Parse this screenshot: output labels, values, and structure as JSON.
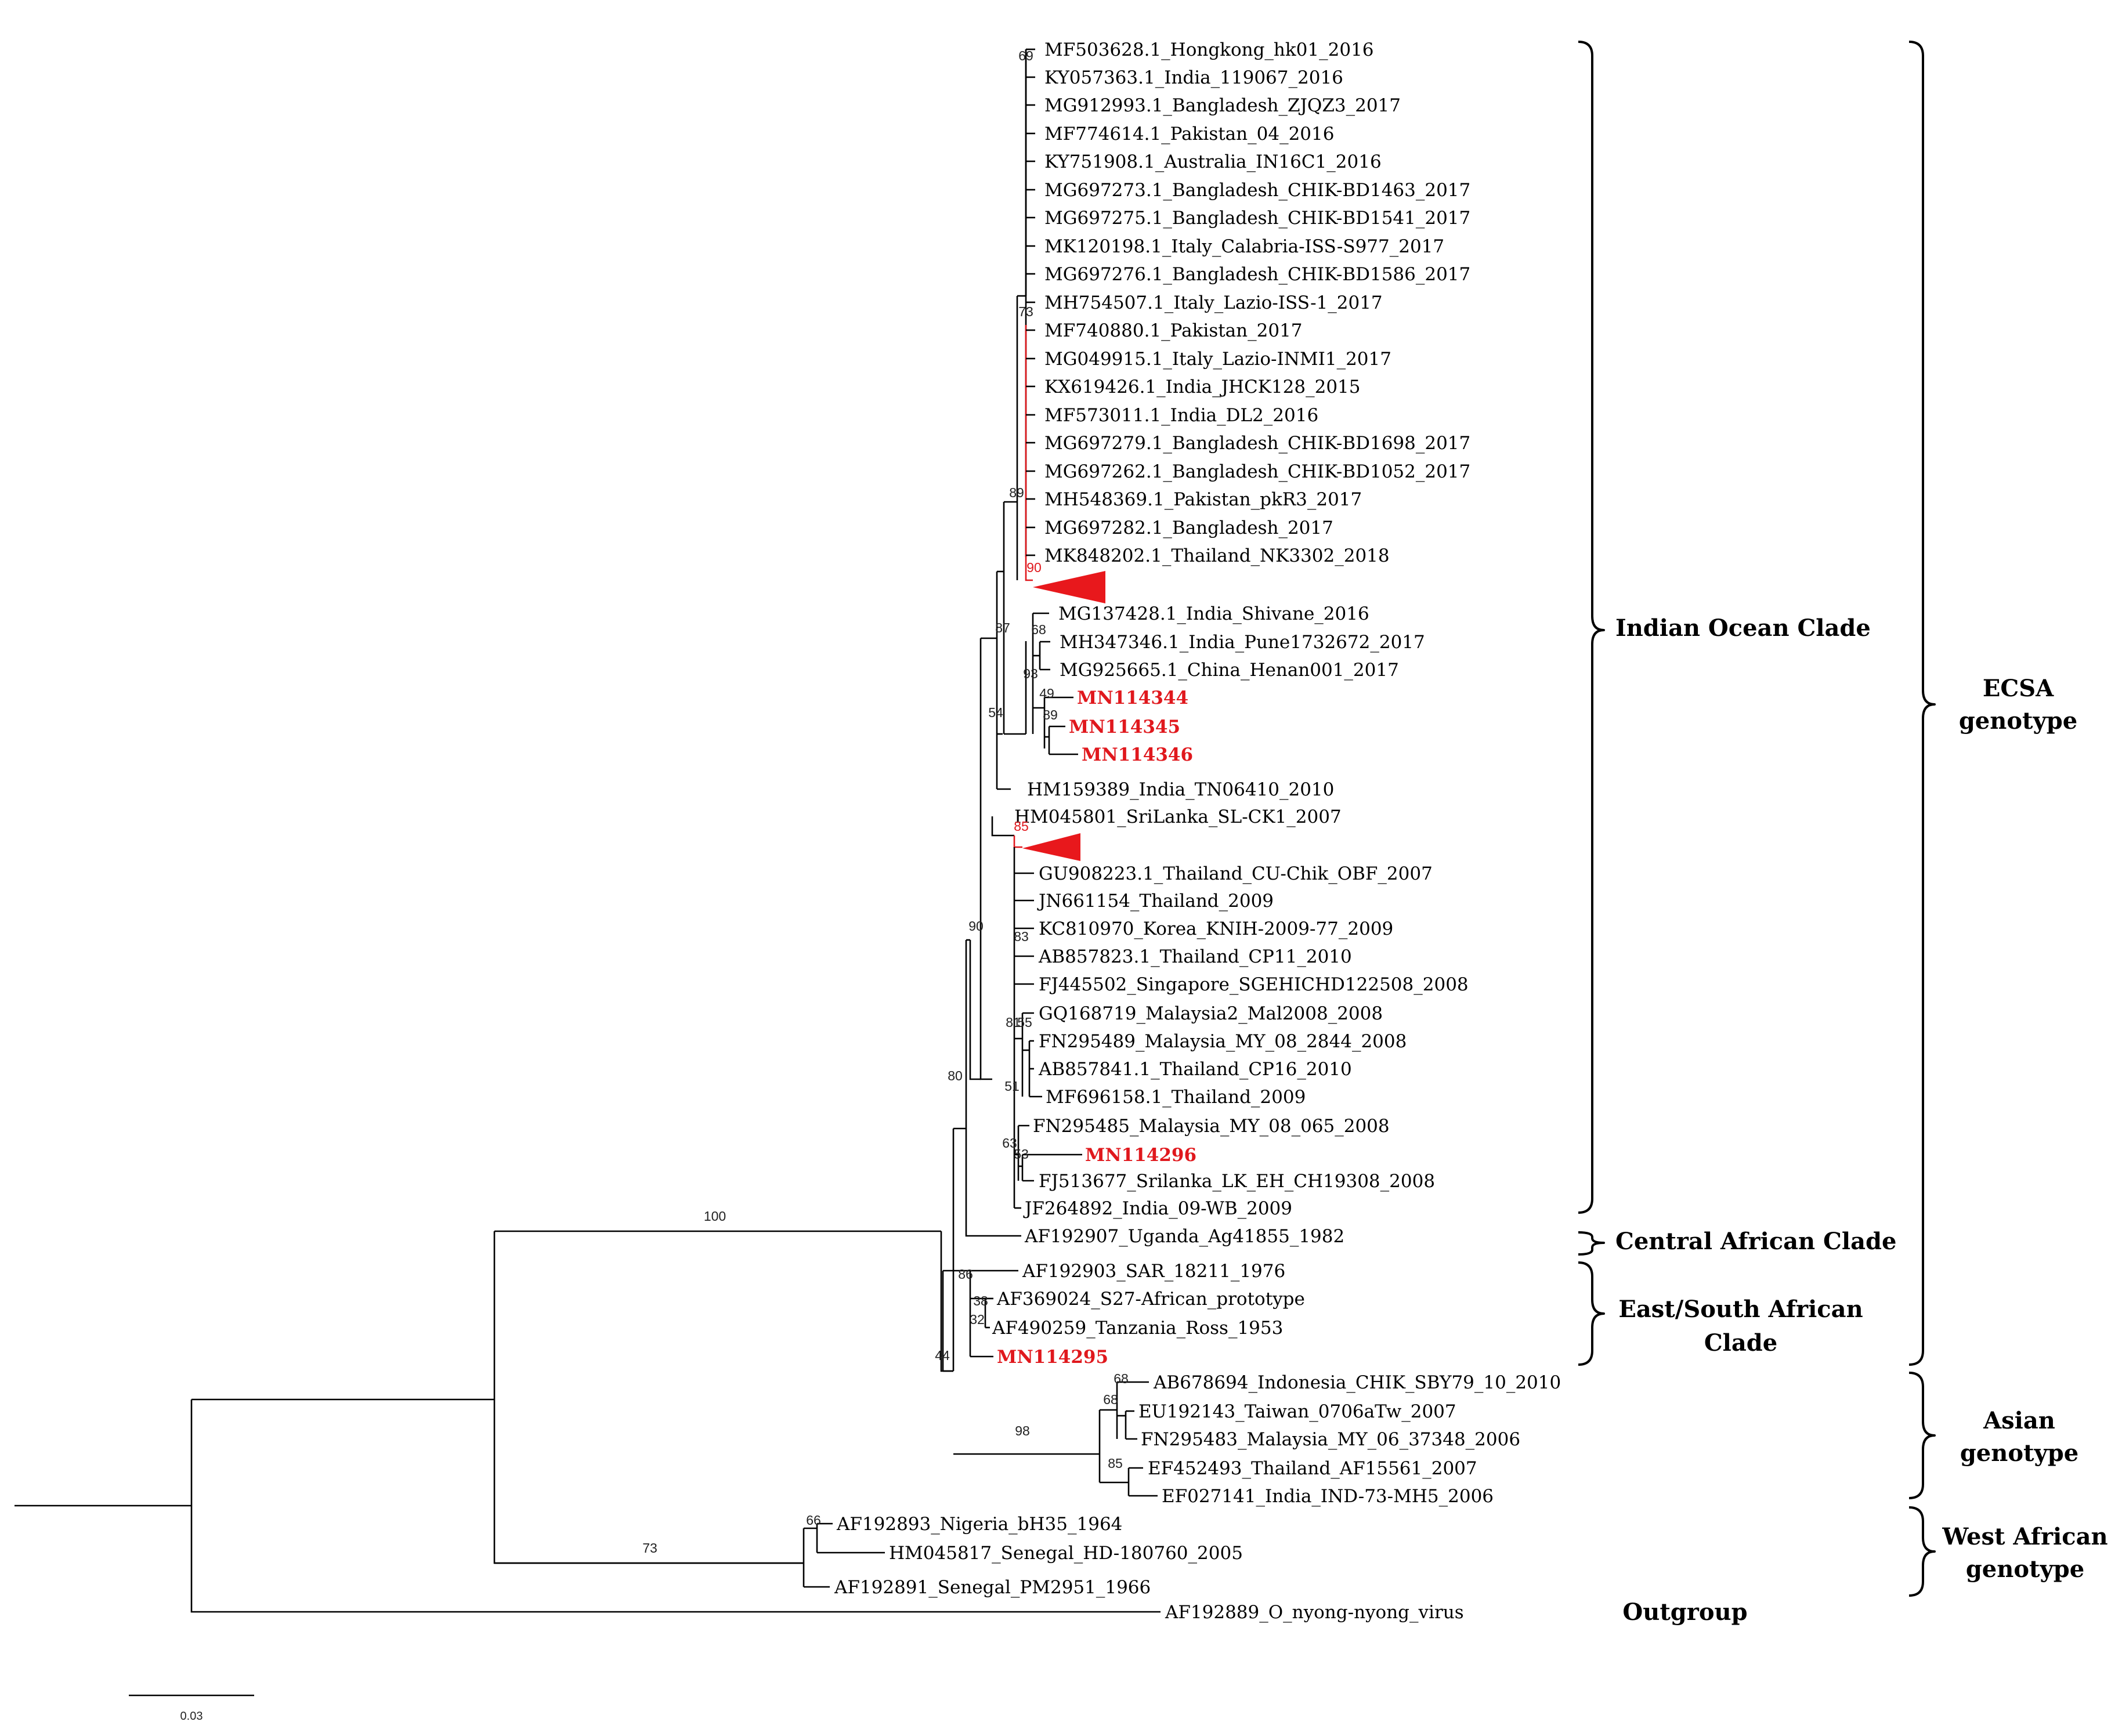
{
  "colors": {
    "highlight": "#e0181d",
    "line": "#000000"
  },
  "leaves": [
    {
      "id": "L1",
      "label": "MF503628.1_Hongkong_hk01_2016"
    },
    {
      "id": "L2",
      "label": "KY057363.1_India_119067_2016"
    },
    {
      "id": "L3",
      "label": "MG912993.1_Bangladesh_ZJQZ3_2017"
    },
    {
      "id": "L4",
      "label": "MF774614.1_Pakistan_04_2016"
    },
    {
      "id": "L5",
      "label": "KY751908.1_Australia_IN16C1_2016"
    },
    {
      "id": "L6",
      "label": "MG697273.1_Bangladesh_CHIK-BD1463_2017"
    },
    {
      "id": "L7",
      "label": "MG697275.1_Bangladesh_CHIK-BD1541_2017"
    },
    {
      "id": "L8",
      "label": "MK120198.1_Italy_Calabria-ISS-S977_2017"
    },
    {
      "id": "L9",
      "label": "MG697276.1_Bangladesh_CHIK-BD1586_2017"
    },
    {
      "id": "L10",
      "label": "MH754507.1_Italy_Lazio-ISS-1_2017"
    },
    {
      "id": "L11",
      "label": "MF740880.1_Pakistan_2017"
    },
    {
      "id": "L12",
      "label": "MG049915.1_Italy_Lazio-INMI1_2017"
    },
    {
      "id": "L13",
      "label": "KX619426.1_India_JHCK128_2015"
    },
    {
      "id": "L14",
      "label": "MF573011.1_India_DL2_2016"
    },
    {
      "id": "L15",
      "label": "MG697279.1_Bangladesh_CHIK-BD1698_2017"
    },
    {
      "id": "L16",
      "label": "MG697262.1_Bangladesh_CHIK-BD1052_2017"
    },
    {
      "id": "L17",
      "label": "MH548369.1_Pakistan_pkR3_2017"
    },
    {
      "id": "L18",
      "label": "MG697282.1_Bangladesh_2017"
    },
    {
      "id": "L19",
      "label": "MK848202.1_Thailand_NK3302_2018"
    },
    {
      "id": "L20",
      "label": "MG137428.1_India_Shivane_2016"
    },
    {
      "id": "L21",
      "label": "MH347346.1_India_Pune1732672_2017"
    },
    {
      "id": "L22",
      "label": "MG925665.1_China_Henan001_2017"
    },
    {
      "id": "L23",
      "label": "MN114344",
      "highlight": true
    },
    {
      "id": "L24",
      "label": "MN114345",
      "highlight": true
    },
    {
      "id": "L25",
      "label": "MN114346",
      "highlight": true
    },
    {
      "id": "L26",
      "label": "HM159389_India_TN06410_2010"
    },
    {
      "id": "L27",
      "label": "HM045801_SriLanka_SL-CK1_2007"
    },
    {
      "id": "L28",
      "label": "GU908223.1_Thailand_CU-Chik_OBF_2007"
    },
    {
      "id": "L29",
      "label": "JN661154_Thailand_2009"
    },
    {
      "id": "L30",
      "label": "KC810970_Korea_KNIH-2009-77_2009"
    },
    {
      "id": "L31",
      "label": "AB857823.1_Thailand_CP11_2010"
    },
    {
      "id": "L32",
      "label": "FJ445502_Singapore_SGEHICHD122508_2008"
    },
    {
      "id": "L33",
      "label": "GQ168719_Malaysia2_Mal2008_2008"
    },
    {
      "id": "L34",
      "label": "FN295489_Malaysia_MY_08_2844_2008"
    },
    {
      "id": "L35",
      "label": "AB857841.1_Thailand_CP16_2010"
    },
    {
      "id": "L36",
      "label": "MF696158.1_Thailand_2009"
    },
    {
      "id": "L37",
      "label": "FN295485_Malaysia_MY_08_065_2008"
    },
    {
      "id": "L38",
      "label": "MN114296",
      "highlight": true
    },
    {
      "id": "L39",
      "label": "FJ513677_Srilanka_LK_EH_CH19308_2008"
    },
    {
      "id": "L40",
      "label": "JF264892_India_09-WB_2009"
    },
    {
      "id": "L41",
      "label": "AF192907_Uganda_Ag41855_1982"
    },
    {
      "id": "L42",
      "label": "AF192903_SAR_18211_1976"
    },
    {
      "id": "L43",
      "label": "AF369024_S27-African_prototype"
    },
    {
      "id": "L44",
      "label": "AF490259_Tanzania_Ross_1953"
    },
    {
      "id": "L45",
      "label": "MN114295",
      "highlight": true
    },
    {
      "id": "L46",
      "label": "AB678694_Indonesia_CHIK_SBY79_10_2010"
    },
    {
      "id": "L47",
      "label": "EU192143_Taiwan_0706aTw_2007"
    },
    {
      "id": "L48",
      "label": "FN295483_Malaysia_MY_06_37348_2006"
    },
    {
      "id": "L49",
      "label": "EF452493_Thailand_AF15561_2007"
    },
    {
      "id": "L50",
      "label": "EF027141_India_IND-73-MH5_2006"
    },
    {
      "id": "L51",
      "label": "AF192893_Nigeria_bH35_1964"
    },
    {
      "id": "L52",
      "label": "HM045817_Senegal_HD-180760_2005"
    },
    {
      "id": "L53",
      "label": "AF192891_Senegal_PM2951_1966"
    },
    {
      "id": "L54",
      "label": "AF192889_O_nyong-nyong_virus"
    }
  ],
  "support_values": [
    {
      "id": "S1",
      "value": "69"
    },
    {
      "id": "S2",
      "value": "73"
    },
    {
      "id": "S3",
      "value": "89"
    },
    {
      "id": "S4",
      "value": "90",
      "highlight": true
    },
    {
      "id": "S5",
      "value": "87"
    },
    {
      "id": "S6",
      "value": "68"
    },
    {
      "id": "S7",
      "value": "93"
    },
    {
      "id": "S8",
      "value": "49"
    },
    {
      "id": "S9",
      "value": "89"
    },
    {
      "id": "S10",
      "value": "54"
    },
    {
      "id": "S11",
      "value": "85",
      "highlight": true
    },
    {
      "id": "S12",
      "value": "90"
    },
    {
      "id": "S13",
      "value": "83"
    },
    {
      "id": "S14",
      "value": "81"
    },
    {
      "id": "S15",
      "value": "55"
    },
    {
      "id": "S16",
      "value": "51"
    },
    {
      "id": "S17",
      "value": "63"
    },
    {
      "id": "S18",
      "value": "53"
    },
    {
      "id": "S19",
      "value": "80"
    },
    {
      "id": "S20",
      "value": "100"
    },
    {
      "id": "S21",
      "value": "86"
    },
    {
      "id": "S22",
      "value": "38"
    },
    {
      "id": "S23",
      "value": "32"
    },
    {
      "id": "S24",
      "value": "44"
    },
    {
      "id": "S25",
      "value": "68"
    },
    {
      "id": "S26",
      "value": "68"
    },
    {
      "id": "S27",
      "value": "98"
    },
    {
      "id": "S28",
      "value": "85"
    },
    {
      "id": "S29",
      "value": "66"
    },
    {
      "id": "S30",
      "value": "73"
    }
  ],
  "clades": {
    "indian_ocean": "Indian Ocean Clade",
    "central_african": "Central African Clade",
    "east_south_african_line1": "East/South African",
    "east_south_african_line2": "Clade"
  },
  "genotypes": {
    "ecsa_line1": "ECSA",
    "ecsa_line2": "genotype",
    "asian_line1": "Asian",
    "asian_line2": "genotype",
    "west_african_line1": "West African",
    "west_african_line2": "genotype",
    "outgroup": "Outgroup"
  },
  "scale_bar": {
    "value": "0.03"
  }
}
